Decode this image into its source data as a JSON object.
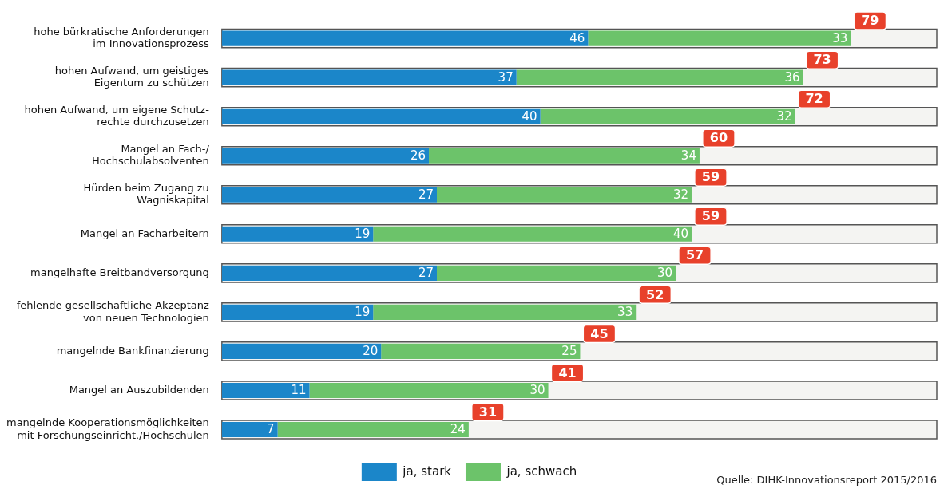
{
  "chart_data": {
    "type": "bar",
    "orientation": "horizontal",
    "stacked": true,
    "data_labels": true,
    "legend": "bottom",
    "categories": [
      "hohe bürkratische Anforderungen\nim Innovationsprozess",
      "hohen Aufwand, um geistiges\nEigentum zu schützen",
      "hohen Aufwand, um eigene Schutz-\nrechte durchzusetzen",
      "Mangel an Fach-/\nHochschulabsolventen",
      "Hürden beim Zugang zu\nWagniskapital",
      "Mangel an Facharbeitern",
      "mangelhafte Breitbandversorgung",
      "fehlende gesellschaftliche Akzeptanz\nvon neuen Technologien",
      "mangelnde Bankfinanzierung",
      "Mangel an Auszubildenden",
      "mangelnde Kooperationsmöglichkeiten\nmit Forschungseinricht./Hochschulen"
    ],
    "series": [
      {
        "name": "ja, stark",
        "color": "#1b86c9",
        "values": [
          46,
          37,
          40,
          26,
          27,
          19,
          27,
          19,
          20,
          11,
          7
        ]
      },
      {
        "name": "ja, schwach",
        "color": "#6cc36a",
        "values": [
          33,
          36,
          32,
          34,
          32,
          40,
          30,
          33,
          25,
          30,
          24
        ]
      }
    ],
    "totals": [
      "79",
      "73",
      "72",
      "60",
      "59",
      "59",
      "57",
      "52",
      "45",
      "41",
      "31"
    ],
    "annotations": [
      "Quelle: DIHK-Innovationsreport 2015/2016"
    ]
  }
}
